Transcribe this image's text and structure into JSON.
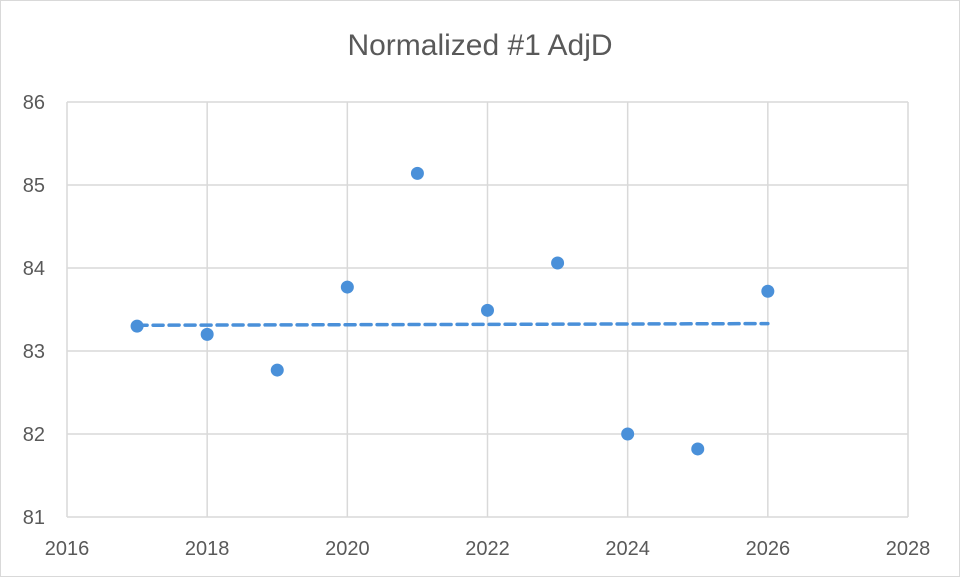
{
  "chart_data": {
    "type": "scatter",
    "title": "Normalized #1 AdjD",
    "xlabel": "",
    "ylabel": "",
    "xlim": [
      2016,
      2028
    ],
    "ylim": [
      81,
      86
    ],
    "x_ticks": [
      2016,
      2018,
      2020,
      2022,
      2024,
      2026,
      2028
    ],
    "y_ticks": [
      81,
      82,
      83,
      84,
      85,
      86
    ],
    "grid": true,
    "legend": "none",
    "series": [
      {
        "x": [
          2017,
          2018,
          2019,
          2020,
          2021,
          2022,
          2023,
          2024,
          2025,
          2026
        ],
        "y": [
          83.3,
          83.2,
          82.77,
          83.77,
          85.14,
          83.49,
          84.06,
          82.0,
          81.82,
          83.72
        ],
        "color": "#4a90d9"
      }
    ],
    "trendline": {
      "type": "linear",
      "style": "dashed",
      "color": "#4a90d9",
      "x": [
        2017,
        2026
      ],
      "y": [
        83.31,
        83.33
      ]
    }
  }
}
